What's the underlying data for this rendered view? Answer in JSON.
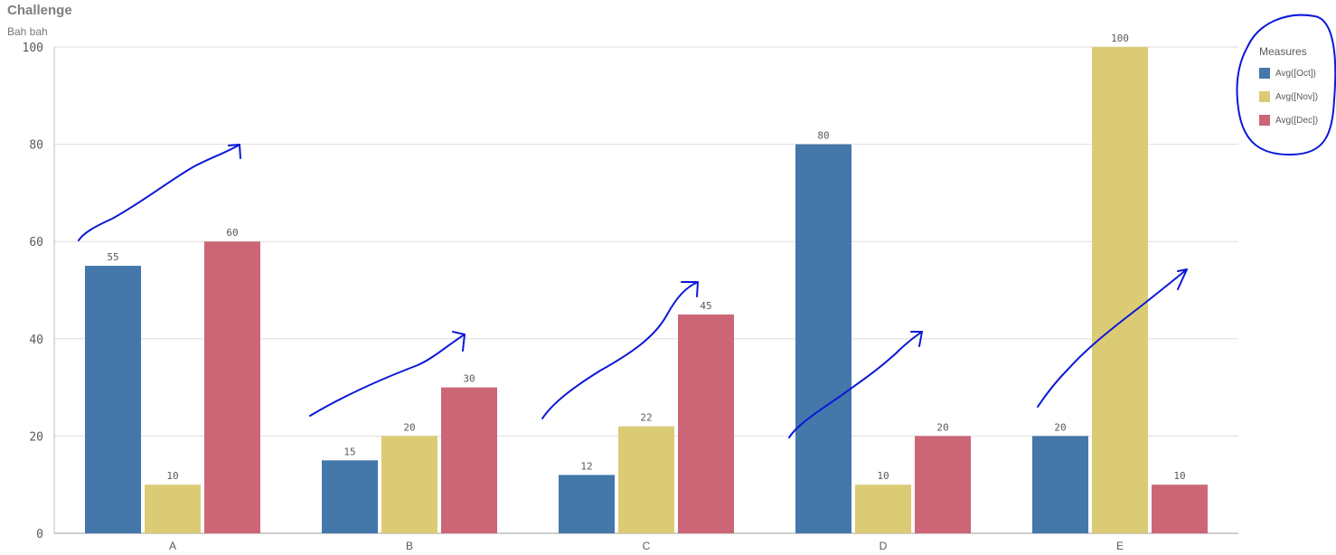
{
  "header": {
    "title": "Challenge",
    "subtitle": "Bah bah"
  },
  "legend": {
    "title": "Measures"
  },
  "chart_data": {
    "type": "bar",
    "categories": [
      "A",
      "B",
      "C",
      "D",
      "E"
    ],
    "series": [
      {
        "name": "Avg([Oct])",
        "color": "#4477aa",
        "values": [
          55,
          15,
          12,
          80,
          20
        ]
      },
      {
        "name": "Avg([Nov])",
        "color": "#dbcb74",
        "values": [
          10,
          20,
          22,
          10,
          100
        ]
      },
      {
        "name": "Avg([Dec])",
        "color": "#cc6677",
        "values": [
          60,
          30,
          45,
          20,
          10
        ]
      }
    ],
    "ylim": [
      0,
      100
    ],
    "yticks": [
      0,
      20,
      40,
      60,
      80,
      100
    ],
    "grid": true,
    "legend_position": "top-right",
    "annotations": "hand-drawn blue arrows over each category and a hand-drawn circle around the legend"
  }
}
